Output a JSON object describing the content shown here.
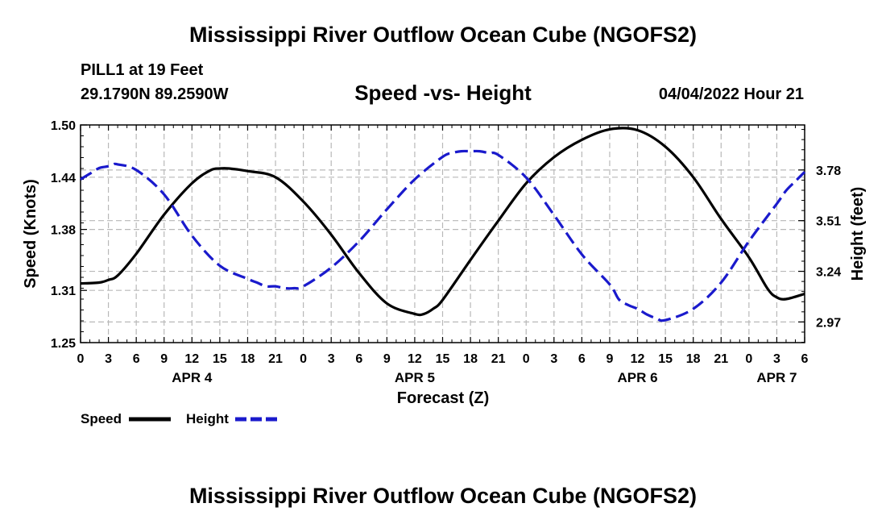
{
  "header": {
    "main_title": "Mississippi River Outflow Ocean Cube (NGOFS2)",
    "station": "PILL1 at 19 Feet",
    "coords": "29.1790N  89.2590W",
    "forecast_time": "04/04/2022 Hour 21",
    "bottom_title": "Mississippi River Outflow Ocean Cube (NGOFS2)"
  },
  "colors": {
    "speed": "#000000",
    "height": "#1a1acc",
    "grid": "#b8b8b8"
  },
  "chart_data": {
    "type": "line",
    "title": "Speed -vs- Height",
    "xlabel": "Forecast (Z)",
    "ylabel_left": "Speed (Knots)",
    "ylabel_right": "Height (feet)",
    "x_range_hours": [
      0,
      78
    ],
    "x_ticks": [
      "0",
      "3",
      "6",
      "9",
      "12",
      "15",
      "18",
      "21",
      "0",
      "3",
      "6",
      "9",
      "12",
      "15",
      "18",
      "21",
      "0",
      "3",
      "6",
      "9",
      "12",
      "15",
      "18",
      "21",
      "0",
      "3",
      "6"
    ],
    "day_labels": [
      {
        "label": "APR 4",
        "hour": 12
      },
      {
        "label": "APR 5",
        "hour": 36
      },
      {
        "label": "APR 6",
        "hour": 60
      },
      {
        "label": "APR 7",
        "hour": 75
      }
    ],
    "y_left": {
      "min": 1.25,
      "max": 1.5,
      "ticks": [
        "1.25",
        "1.31",
        "1.38",
        "1.44",
        "1.50"
      ]
    },
    "y_right": {
      "min": 2.86,
      "max": 4.02,
      "ticks": [
        "2.97",
        "3.24",
        "3.51",
        "3.78"
      ]
    },
    "legend": [
      "Speed",
      "Height"
    ],
    "series": [
      {
        "name": "Speed",
        "axis": "left",
        "style": "solid",
        "x": [
          0,
          2,
          3,
          4,
          6,
          9,
          12,
          14,
          15,
          16,
          18,
          21,
          24,
          27,
          30,
          33,
          36,
          37,
          38,
          39,
          42,
          45,
          48,
          51,
          54,
          57,
          60,
          63,
          66,
          69,
          72,
          74,
          75,
          76,
          78
        ],
        "values": [
          1.318,
          1.319,
          1.322,
          1.327,
          1.352,
          1.397,
          1.433,
          1.448,
          1.45,
          1.45,
          1.447,
          1.44,
          1.412,
          1.374,
          1.33,
          1.295,
          1.283,
          1.283,
          1.289,
          1.299,
          1.345,
          1.39,
          1.433,
          1.463,
          1.483,
          1.495,
          1.494,
          1.475,
          1.44,
          1.392,
          1.348,
          1.312,
          1.302,
          1.3,
          1.306
        ]
      },
      {
        "name": "Height",
        "axis": "right",
        "style": "dashed",
        "x": [
          0,
          1,
          2,
          3,
          3.5,
          4,
          6,
          9,
          12,
          15,
          18,
          19,
          20,
          21,
          22,
          23,
          24,
          27,
          30,
          33,
          36,
          39,
          40,
          41,
          42,
          43,
          44,
          45,
          48,
          51,
          54,
          57,
          58,
          59,
          60,
          61,
          62,
          63,
          66,
          69,
          72,
          75,
          76,
          77,
          78
        ],
        "values": [
          3.73,
          3.76,
          3.79,
          3.8,
          3.81,
          3.81,
          3.78,
          3.65,
          3.43,
          3.27,
          3.2,
          3.18,
          3.16,
          3.16,
          3.15,
          3.15,
          3.16,
          3.26,
          3.4,
          3.57,
          3.73,
          3.85,
          3.87,
          3.88,
          3.88,
          3.88,
          3.87,
          3.86,
          3.74,
          3.54,
          3.33,
          3.17,
          3.09,
          3.06,
          3.04,
          3.01,
          2.99,
          2.98,
          3.04,
          3.18,
          3.4,
          3.6,
          3.67,
          3.72,
          3.77
        ]
      }
    ]
  }
}
